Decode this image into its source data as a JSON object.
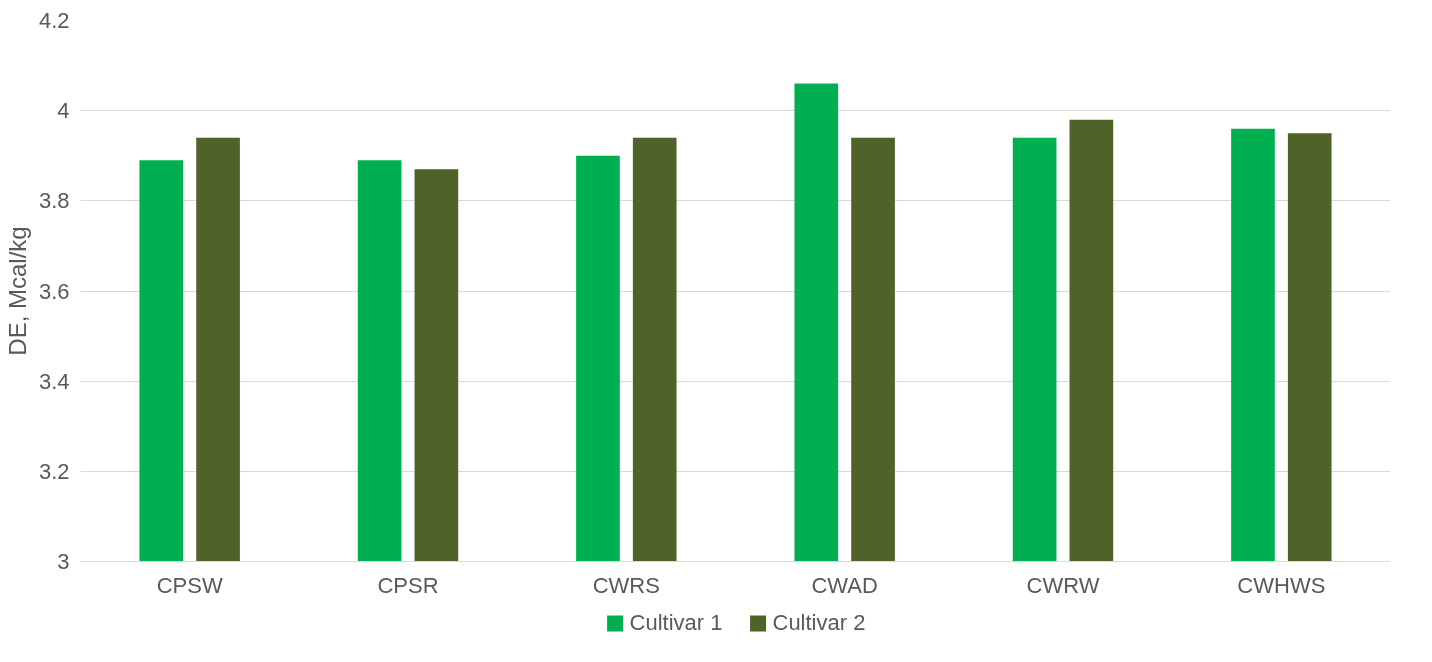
{
  "chart_data": {
    "type": "bar",
    "ylabel": "DE, Mcal/kg",
    "categories": [
      "CPSW",
      "CPSR",
      "CWRS",
      "CWAD",
      "CWRW",
      "CWHWS"
    ],
    "series": [
      {
        "name": "Cultivar 1",
        "color": "#00b050",
        "values": [
          3.89,
          3.89,
          3.9,
          4.06,
          3.94,
          3.96
        ]
      },
      {
        "name": "Cultivar 2",
        "color": "#4f6228",
        "values": [
          3.94,
          3.87,
          3.94,
          3.94,
          3.98,
          3.95
        ]
      }
    ],
    "ylim": [
      3,
      4.2
    ],
    "yticks": [
      3,
      3.2,
      3.4,
      3.6,
      3.8,
      4,
      4.2
    ],
    "grid": "y",
    "legend": "bottom"
  }
}
